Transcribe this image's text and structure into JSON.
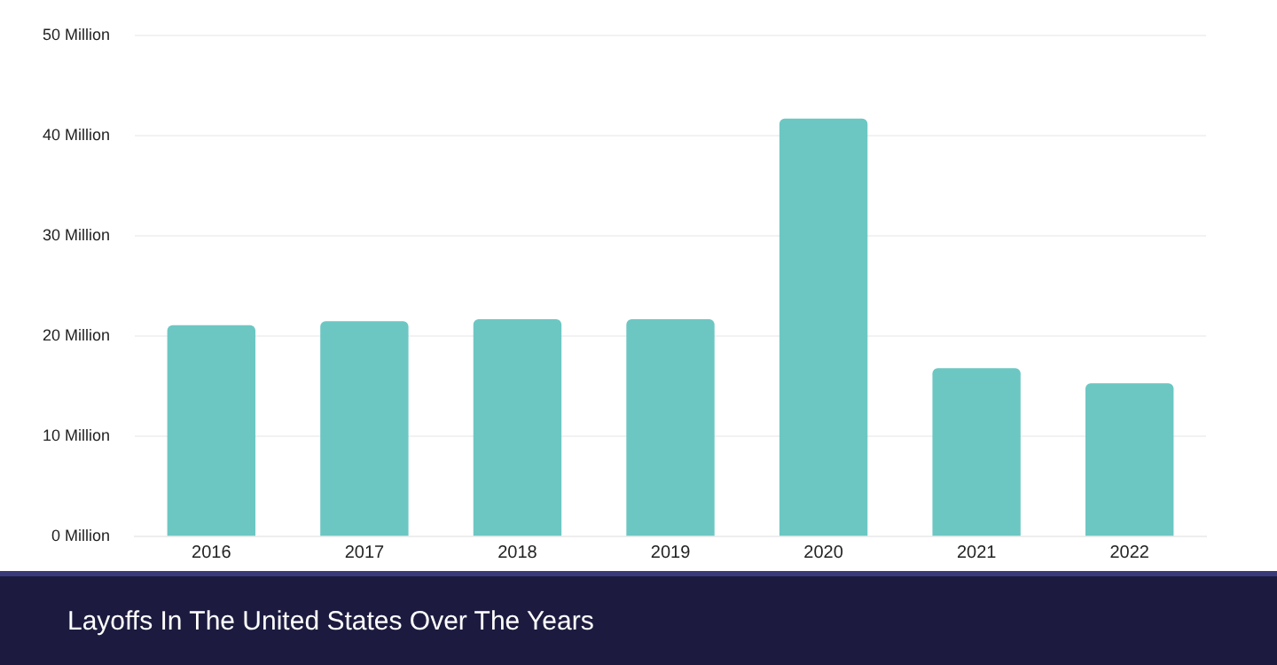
{
  "chart_data": {
    "type": "bar",
    "title": "Layoffs In The United States Over The Years",
    "categories": [
      "2016",
      "2017",
      "2018",
      "2019",
      "2020",
      "2021",
      "2022"
    ],
    "values": [
      21.1,
      21.5,
      21.7,
      21.7,
      41.7,
      16.8,
      15.3
    ],
    "color": "#6cc7c3",
    "ylim": [
      0,
      50
    ],
    "yticks": [
      {
        "value": 0,
        "label": "0 Million"
      },
      {
        "value": 10,
        "label": "10 Million"
      },
      {
        "value": 20,
        "label": "20 Million"
      },
      {
        "value": 30,
        "label": "30 Million"
      },
      {
        "value": 40,
        "label": "40 Million"
      },
      {
        "value": 50,
        "label": "50 Million"
      }
    ],
    "grid": "y",
    "legend": false
  }
}
